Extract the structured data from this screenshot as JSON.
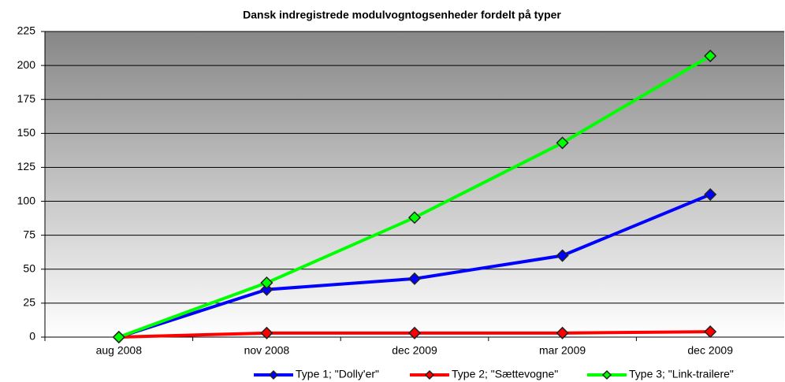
{
  "chart_data": {
    "type": "line",
    "title": "Dansk indregistrede modulvogntogsenheder fordelt på typer",
    "categories": [
      "aug 2008",
      "nov 2008",
      "dec 2009",
      "mar 2009",
      "dec 2009"
    ],
    "series": [
      {
        "name": "Type 1; \"Dolly'er\"",
        "color": "#0000ff",
        "values": [
          0,
          35,
          43,
          60,
          105
        ]
      },
      {
        "name": "Type 2; \"Sættevogne\"",
        "color": "#ff0000",
        "values": [
          0,
          3,
          3,
          3,
          4
        ]
      },
      {
        "name": "Type 3; \"Link-trailere\"",
        "color": "#00ff00",
        "values": [
          0,
          40,
          88,
          143,
          207
        ]
      }
    ],
    "ylim": [
      0,
      225
    ],
    "yticks": [
      0,
      25,
      50,
      75,
      100,
      125,
      150,
      175,
      200,
      225
    ],
    "grid": true,
    "legend": "bottom"
  }
}
